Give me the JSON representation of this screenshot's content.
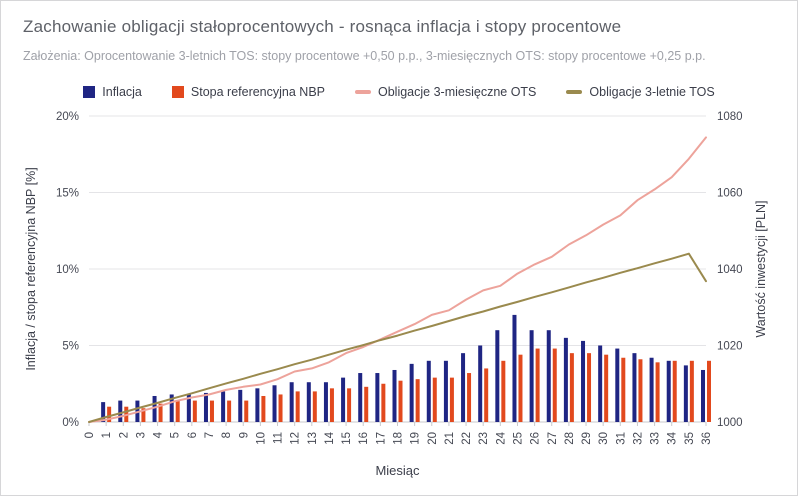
{
  "header": {
    "title": "Zachowanie obligacji stałoprocentowych - rosnąca inflacja i stopy procentowe",
    "subtitle": "Założenia: Oprocentowanie 3-letnich TOS: stopy procentowe +0,50 p.p., 3-miesięcznych OTS: stopy procentowe +0,25 p.p."
  },
  "legend": [
    {
      "label": "Inflacja",
      "marker": "square",
      "color": "#1f2583"
    },
    {
      "label": "Stopa referencyjna NBP",
      "marker": "square",
      "color": "#e2491d"
    },
    {
      "label": "Obligacje 3-miesięczne OTS",
      "marker": "line",
      "color": "#eda39b"
    },
    {
      "label": "Obligacje 3-letnie TOS",
      "marker": "line",
      "color": "#9a8a4e"
    }
  ],
  "chart_data": {
    "type": "bar",
    "subtype": "bars-and-lines-dual-axis",
    "title": "Zachowanie obligacji stałoprocentowych - rosnąca inflacja i stopy procentowe",
    "xlabel": "Miesiąc",
    "x": [
      0,
      1,
      2,
      3,
      4,
      5,
      6,
      7,
      8,
      9,
      10,
      11,
      12,
      13,
      14,
      15,
      16,
      17,
      18,
      19,
      20,
      21,
      22,
      23,
      24,
      25,
      26,
      27,
      28,
      29,
      30,
      31,
      32,
      33,
      34,
      35,
      36
    ],
    "left_axis": {
      "label": "Inflacja / stopa referencyjna NBP [%]",
      "ticks": [
        "0%",
        "5%",
        "10%",
        "15%",
        "20%"
      ],
      "range": [
        0,
        20
      ]
    },
    "right_axis": {
      "label": "Wartość inwestycji [PLN]",
      "ticks": [
        "1000",
        "1020",
        "1040",
        "1060",
        "1080"
      ],
      "range": [
        1000,
        1080
      ]
    },
    "grid": true,
    "legend_position": "top",
    "series": [
      {
        "name": "Inflacja",
        "type": "bar",
        "axis": "left",
        "unit": "%",
        "color": "#1f2583",
        "values": [
          0,
          1.3,
          1.4,
          1.4,
          1.7,
          1.8,
          1.8,
          1.9,
          2.0,
          2.1,
          2.2,
          2.4,
          2.6,
          2.6,
          2.6,
          2.9,
          3.2,
          3.2,
          3.4,
          3.8,
          4.0,
          4.0,
          4.5,
          5.0,
          6.0,
          7.0,
          6.0,
          6.0,
          5.5,
          5.3,
          5.0,
          4.8,
          4.5,
          4.2,
          4.0,
          3.7,
          3.4
        ]
      },
      {
        "name": "Stopa referencyjna NBP",
        "type": "bar",
        "axis": "left",
        "unit": "%",
        "color": "#e2491d",
        "values": [
          0,
          1.0,
          1.0,
          0.9,
          1.2,
          1.4,
          1.4,
          1.4,
          1.4,
          1.4,
          1.7,
          1.8,
          2.0,
          2.0,
          2.2,
          2.2,
          2.3,
          2.5,
          2.7,
          2.8,
          2.9,
          2.9,
          3.2,
          3.5,
          4.0,
          4.4,
          4.8,
          4.8,
          4.5,
          4.5,
          4.4,
          4.2,
          4.1,
          3.9,
          4.0,
          4.0,
          4.0
        ]
      },
      {
        "name": "Obligacje 3-miesięczne OTS",
        "type": "line",
        "axis": "right",
        "unit": "PLN",
        "color": "#eda39b",
        "values": [
          1000,
          1000.6,
          1001.6,
          1002.8,
          1004.0,
          1005.4,
          1006.4,
          1007.2,
          1008.4,
          1009.2,
          1009.8,
          1011.2,
          1013.2,
          1014.0,
          1015.6,
          1018.0,
          1019.6,
          1021.6,
          1023.6,
          1025.6,
          1028.0,
          1029.2,
          1032.0,
          1034.4,
          1035.6,
          1038.8,
          1041.2,
          1043.2,
          1046.4,
          1048.8,
          1051.6,
          1054.0,
          1058.0,
          1060.8,
          1064.0,
          1068.8,
          1074.4
        ]
      },
      {
        "name": "Obligacje 3-letnie TOS",
        "type": "line",
        "axis": "right",
        "unit": "PLN",
        "color": "#9a8a4e",
        "values": [
          1000,
          1001.3,
          1002.5,
          1003.8,
          1005.0,
          1006.3,
          1007.5,
          1008.8,
          1010.1,
          1011.3,
          1012.6,
          1013.8,
          1015.1,
          1016.3,
          1017.6,
          1018.9,
          1020.1,
          1021.4,
          1022.6,
          1023.9,
          1025.1,
          1026.4,
          1027.7,
          1028.9,
          1030.2,
          1031.4,
          1032.7,
          1033.9,
          1035.2,
          1036.5,
          1037.7,
          1039.0,
          1040.2,
          1041.5,
          1042.7,
          1044.0,
          1036.8
        ]
      }
    ]
  },
  "colors": {
    "grid": "#e4e4e7",
    "baseline": "#c9c9cd",
    "tick_text": "#454853",
    "axis_title": "#3b3e4a",
    "title": "#5e6168",
    "subtitle": "#9fa1a8"
  }
}
